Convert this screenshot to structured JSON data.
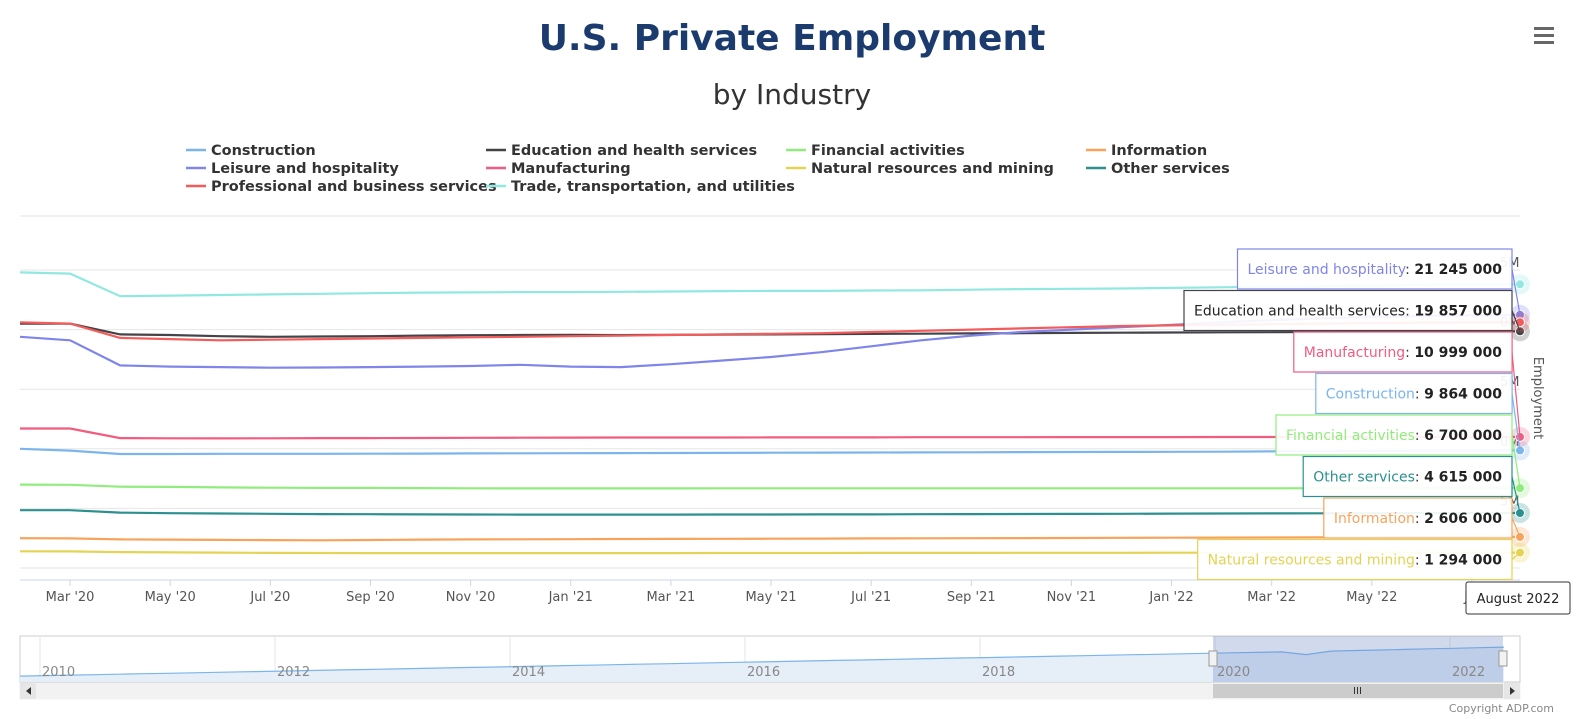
{
  "menu_icon": "hamburger-menu-icon",
  "credits": "Copyright ADP.com",
  "chart_data": {
    "type": "line",
    "title": "U.S. Private Employment",
    "subtitle": "by Industry",
    "ylabel": "Employment",
    "x": [
      "Feb '20",
      "Mar '20",
      "Apr '20",
      "May '20",
      "Jun '20",
      "Jul '20",
      "Aug '20",
      "Sep '20",
      "Oct '20",
      "Nov '20",
      "Dec '20",
      "Jan '21",
      "Feb '21",
      "Mar '21",
      "Apr '21",
      "May '21",
      "Jun '21",
      "Jul '21",
      "Aug '21",
      "Sep '21",
      "Oct '21",
      "Nov '21",
      "Dec '21",
      "Jan '22",
      "Feb '22",
      "Mar '22",
      "Apr '22",
      "May '22",
      "Jun '22",
      "Jul '22",
      "Aug '22"
    ],
    "x_tick_labels": [
      "Mar '20",
      "May '20",
      "Jul '20",
      "Sep '20",
      "Nov '20",
      "Jan '21",
      "Mar '21",
      "May '21",
      "Jul '21",
      "Sep '21",
      "Nov '21",
      "Jan '22",
      "Mar '22",
      "May '22",
      "Jul"
    ],
    "ylim": [
      0,
      25000000
    ],
    "y_tick_partial_labels": [
      "5M",
      "0M",
      "5M",
      "0M",
      "5M"
    ],
    "hover_label": "August 2022",
    "series": [
      {
        "name": "Construction",
        "color": "#7cb5ec",
        "tooltip_value": "9 864 000",
        "values": [
          10000000,
          9850000,
          9560000,
          9560000,
          9580000,
          9580000,
          9580000,
          9590000,
          9600000,
          9610000,
          9620000,
          9630000,
          9640000,
          9650000,
          9660000,
          9670000,
          9680000,
          9690000,
          9700000,
          9710000,
          9720000,
          9730000,
          9740000,
          9750000,
          9760000,
          9780000,
          9800000,
          9820000,
          9840000,
          9850000,
          9864000
        ]
      },
      {
        "name": "Education and health services",
        "color": "#434348",
        "tooltip_value": "19 857 000",
        "values": [
          20500000,
          20500000,
          19600000,
          19550000,
          19450000,
          19400000,
          19420000,
          19450000,
          19500000,
          19530000,
          19550000,
          19560000,
          19540000,
          19560000,
          19580000,
          19600000,
          19620000,
          19640000,
          19660000,
          19680000,
          19700000,
          19720000,
          19740000,
          19760000,
          19770000,
          19780000,
          19800000,
          19820000,
          19830000,
          19840000,
          19857000
        ]
      },
      {
        "name": "Financial activities",
        "color": "#90ed7d",
        "tooltip_value": "6 700 000",
        "values": [
          7000000,
          6980000,
          6820000,
          6800000,
          6760000,
          6740000,
          6720000,
          6720000,
          6700000,
          6690000,
          6680000,
          6680000,
          6680000,
          6680000,
          6690000,
          6690000,
          6690000,
          6690000,
          6690000,
          6690000,
          6690000,
          6690000,
          6690000,
          6690000,
          6690000,
          6690000,
          6695000,
          6695000,
          6698000,
          6700000,
          6700000
        ]
      },
      {
        "name": "Information",
        "color": "#f7a35c",
        "tooltip_value": "2 606 000",
        "values": [
          2500000,
          2480000,
          2400000,
          2380000,
          2360000,
          2340000,
          2320000,
          2350000,
          2380000,
          2400000,
          2410000,
          2420000,
          2430000,
          2440000,
          2450000,
          2460000,
          2470000,
          2480000,
          2490000,
          2500000,
          2510000,
          2520000,
          2530000,
          2540000,
          2550000,
          2560000,
          2570000,
          2580000,
          2590000,
          2600000,
          2606000
        ]
      },
      {
        "name": "Leisure and hospitality",
        "color": "#8085e9",
        "tooltip_value": "21 245 000",
        "values": [
          19400000,
          19100000,
          17000000,
          16900000,
          16850000,
          16800000,
          16820000,
          16850000,
          16900000,
          16950000,
          17050000,
          16900000,
          16850000,
          17100000,
          17400000,
          17700000,
          18100000,
          18600000,
          19100000,
          19500000,
          19800000,
          20000000,
          20200000,
          20400000,
          20600000,
          20800000,
          20950000,
          21050000,
          21150000,
          21200000,
          21245000
        ]
      },
      {
        "name": "Manufacturing",
        "color": "#f15c80",
        "tooltip_value": "10 999 000",
        "values": [
          11700000,
          11700000,
          10900000,
          10880000,
          10870000,
          10880000,
          10900000,
          10900000,
          10910000,
          10920000,
          10930000,
          10940000,
          10950000,
          10950000,
          10950000,
          10960000,
          10960000,
          10960000,
          10970000,
          10970000,
          10975000,
          10980000,
          10980000,
          10985000,
          10990000,
          10990000,
          10992000,
          10995000,
          10997000,
          10998000,
          10999000
        ]
      },
      {
        "name": "Natural resources and mining",
        "color": "#e4d354",
        "tooltip_value": "1 294 000",
        "values": [
          1400000,
          1390000,
          1330000,
          1310000,
          1290000,
          1270000,
          1260000,
          1250000,
          1250000,
          1250000,
          1250000,
          1250000,
          1250000,
          1250000,
          1255000,
          1260000,
          1262000,
          1265000,
          1268000,
          1270000,
          1272000,
          1275000,
          1278000,
          1280000,
          1282000,
          1285000,
          1287000,
          1289000,
          1291000,
          1293000,
          1294000
        ]
      },
      {
        "name": "Other services",
        "color": "#2b908f",
        "tooltip_value": "4 615 000",
        "values": [
          4850000,
          4850000,
          4650000,
          4600000,
          4570000,
          4550000,
          4520000,
          4510000,
          4500000,
          4490000,
          4480000,
          4480000,
          4480000,
          4480000,
          4490000,
          4490000,
          4500000,
          4500000,
          4510000,
          4520000,
          4530000,
          4540000,
          4550000,
          4560000,
          4570000,
          4580000,
          4590000,
          4600000,
          4605000,
          4610000,
          4615000
        ]
      },
      {
        "name": "Professional and business services",
        "color": "#f45b5b",
        "tooltip_value": "",
        "values": [
          20600000,
          20500000,
          19300000,
          19200000,
          19100000,
          19150000,
          19200000,
          19250000,
          19300000,
          19350000,
          19400000,
          19450000,
          19500000,
          19550000,
          19600000,
          19650000,
          19700000,
          19800000,
          19900000,
          20000000,
          20100000,
          20200000,
          20300000,
          20350000,
          20400000,
          20450000,
          20500000,
          20550000,
          20580000,
          20600000,
          20620000
        ]
      },
      {
        "name": "Trade, transportation, and utilities",
        "color": "#91e8e1",
        "tooltip_value": "",
        "values": [
          24800000,
          24700000,
          22800000,
          22850000,
          22900000,
          22950000,
          23000000,
          23050000,
          23100000,
          23120000,
          23150000,
          23150000,
          23170000,
          23200000,
          23230000,
          23250000,
          23250000,
          23280000,
          23300000,
          23350000,
          23400000,
          23420000,
          23450000,
          23500000,
          23550000,
          23600000,
          23650000,
          23700000,
          23750000,
          23780000,
          23800000
        ]
      }
    ],
    "tooltip_order": [
      "Leisure and hospitality",
      "Education and health services",
      "Manufacturing",
      "Construction",
      "Financial activities",
      "Other services",
      "Information",
      "Natural resources and mining"
    ],
    "navigator": {
      "year_labels": [
        "2010",
        "2012",
        "2014",
        "2016",
        "2018",
        "2020",
        "2022"
      ]
    }
  }
}
